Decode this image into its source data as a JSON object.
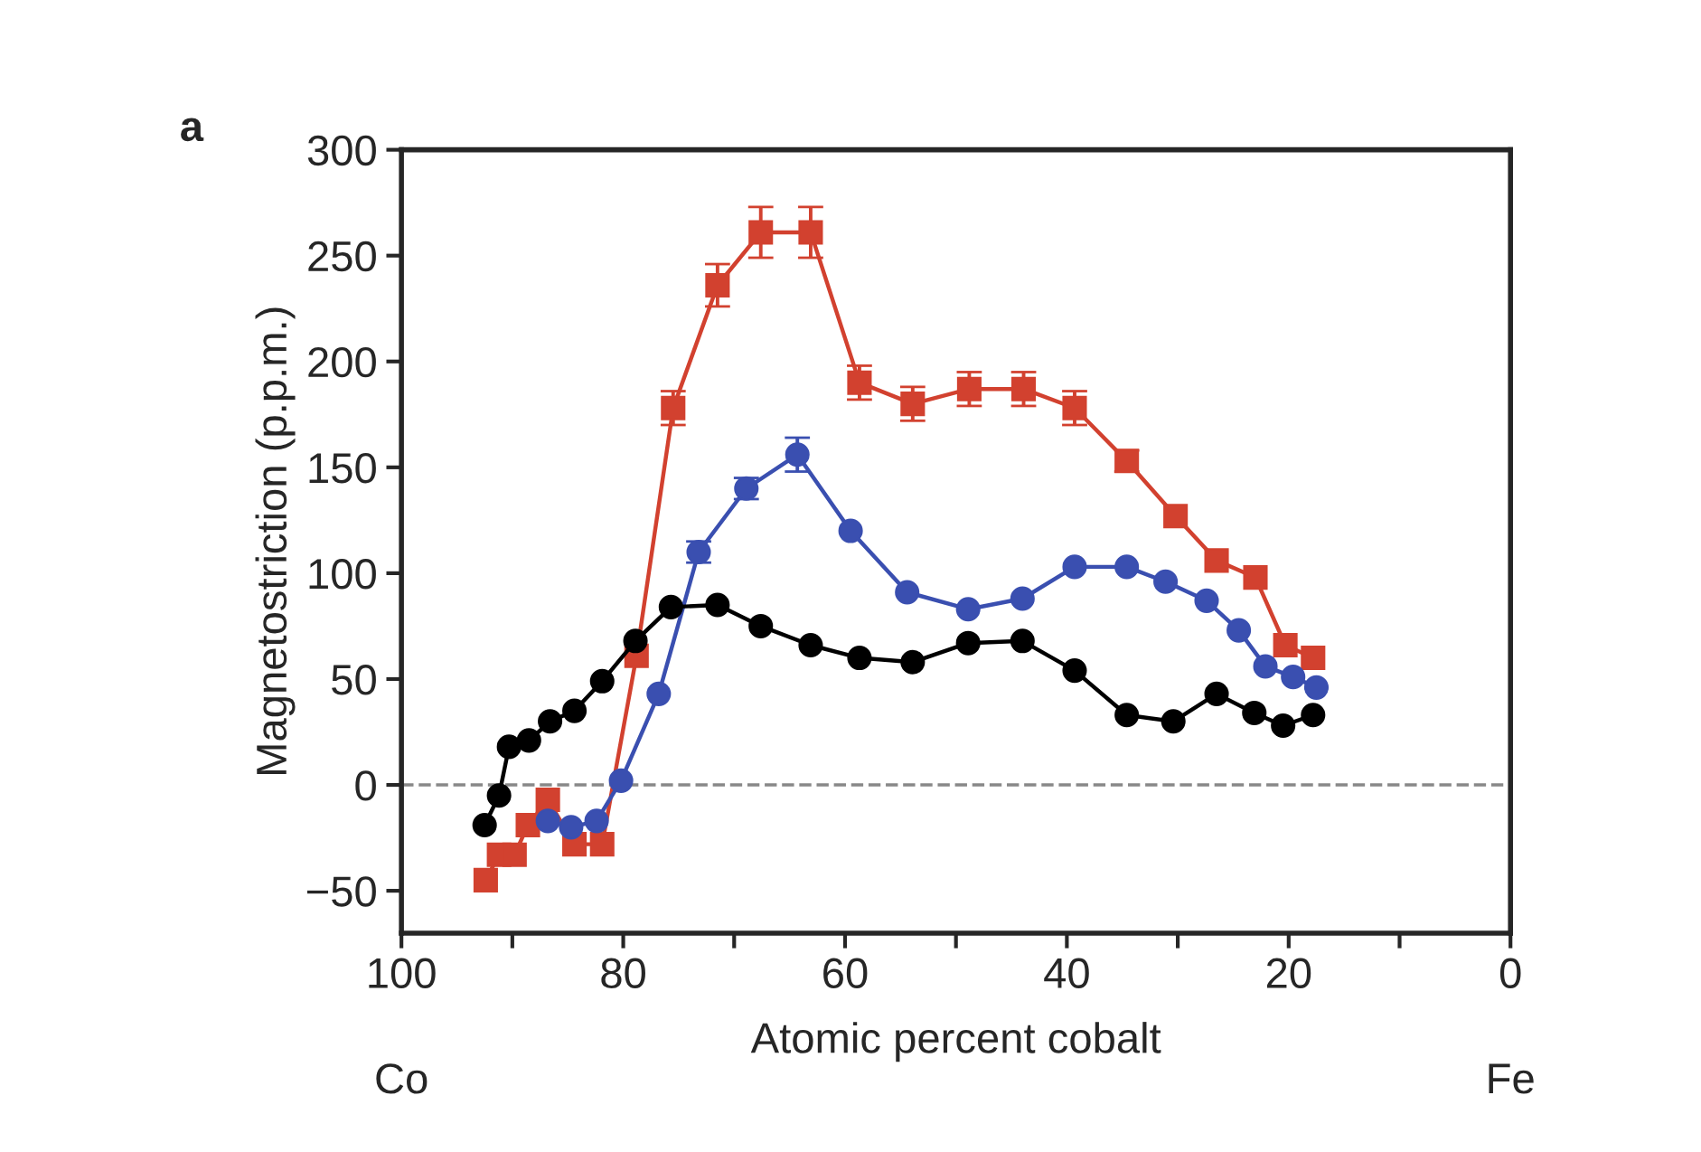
{
  "chart_data": {
    "type": "line",
    "xlabel": "Atomic percent cobalt",
    "ylabel": "Magnetostriction (p.p.m.)",
    "annotations": [
      "a",
      "Co",
      "Fe"
    ],
    "xlim": [
      100,
      0
    ],
    "ylim": [
      -70,
      300
    ],
    "xticks": [
      100,
      {
        "value": 90,
        "label": null
      },
      80,
      {
        "value": 70,
        "label": null
      },
      60,
      {
        "value": 50,
        "label": null
      },
      40,
      {
        "value": 30,
        "label": null
      },
      20,
      {
        "value": 10,
        "label": null
      },
      0
    ],
    "yticks": [
      {
        "value": -50,
        "label": "−50"
      },
      0,
      50,
      100,
      150,
      200,
      250,
      300
    ],
    "grid": false,
    "legend": false,
    "line_style": "solid",
    "ref_lines": [
      {
        "axis": "y",
        "value": 0,
        "label": null,
        "color": "#888888",
        "line_style": "dashed"
      }
    ],
    "series": [
      {
        "color": "#000000",
        "marker": "circle",
        "x": [
          92.5,
          91.2,
          90.3,
          88.5,
          86.6,
          84.4,
          81.9,
          78.9,
          75.7,
          71.5,
          67.6,
          63.1,
          58.7,
          53.9,
          48.9,
          44.0,
          39.3,
          34.6,
          30.4,
          26.5,
          23.1,
          20.5,
          17.8
        ],
        "values": [
          -19,
          -5,
          18,
          21,
          30,
          35,
          49,
          68,
          84,
          85,
          75,
          66,
          60,
          58,
          67,
          68,
          54,
          33,
          30,
          43,
          34,
          28,
          33
        ]
      },
      {
        "color": "#3a4fb0",
        "marker": "circle",
        "x": [
          86.8,
          84.7,
          82.4,
          80.2,
          76.8,
          73.2,
          68.9,
          64.3,
          59.5,
          54.4,
          48.9,
          44.0,
          39.3,
          34.6,
          31.1,
          27.4,
          24.5,
          22.1,
          19.6,
          17.5
        ],
        "values": [
          -17,
          -20,
          -17,
          2,
          43,
          110,
          140,
          156,
          120,
          91,
          83,
          88,
          103,
          103,
          96,
          87,
          73,
          56,
          51,
          46
        ],
        "errors": [
          null,
          null,
          null,
          null,
          null,
          5,
          5,
          8,
          null,
          null,
          null,
          null,
          null,
          null,
          null,
          null,
          null,
          null,
          null,
          null
        ]
      },
      {
        "color": "#d2412f",
        "marker": "square",
        "x": [
          92.4,
          91.2,
          89.8,
          88.6,
          86.8,
          84.4,
          81.9,
          78.8,
          75.5,
          71.5,
          67.6,
          63.1,
          58.7,
          53.9,
          48.8,
          43.9,
          39.3,
          34.6,
          30.2,
          26.5,
          23.0,
          20.3,
          17.8
        ],
        "values": [
          -45,
          -33,
          -33,
          -19,
          -7,
          -28,
          -28,
          61,
          178,
          236,
          261,
          261,
          190,
          180,
          187,
          187,
          178,
          153,
          127,
          106,
          98,
          66,
          60
        ],
        "errors": [
          null,
          null,
          null,
          null,
          null,
          null,
          null,
          null,
          8,
          10,
          12,
          12,
          8,
          8,
          8,
          8,
          8,
          5,
          null,
          null,
          null,
          null,
          null
        ]
      }
    ]
  }
}
